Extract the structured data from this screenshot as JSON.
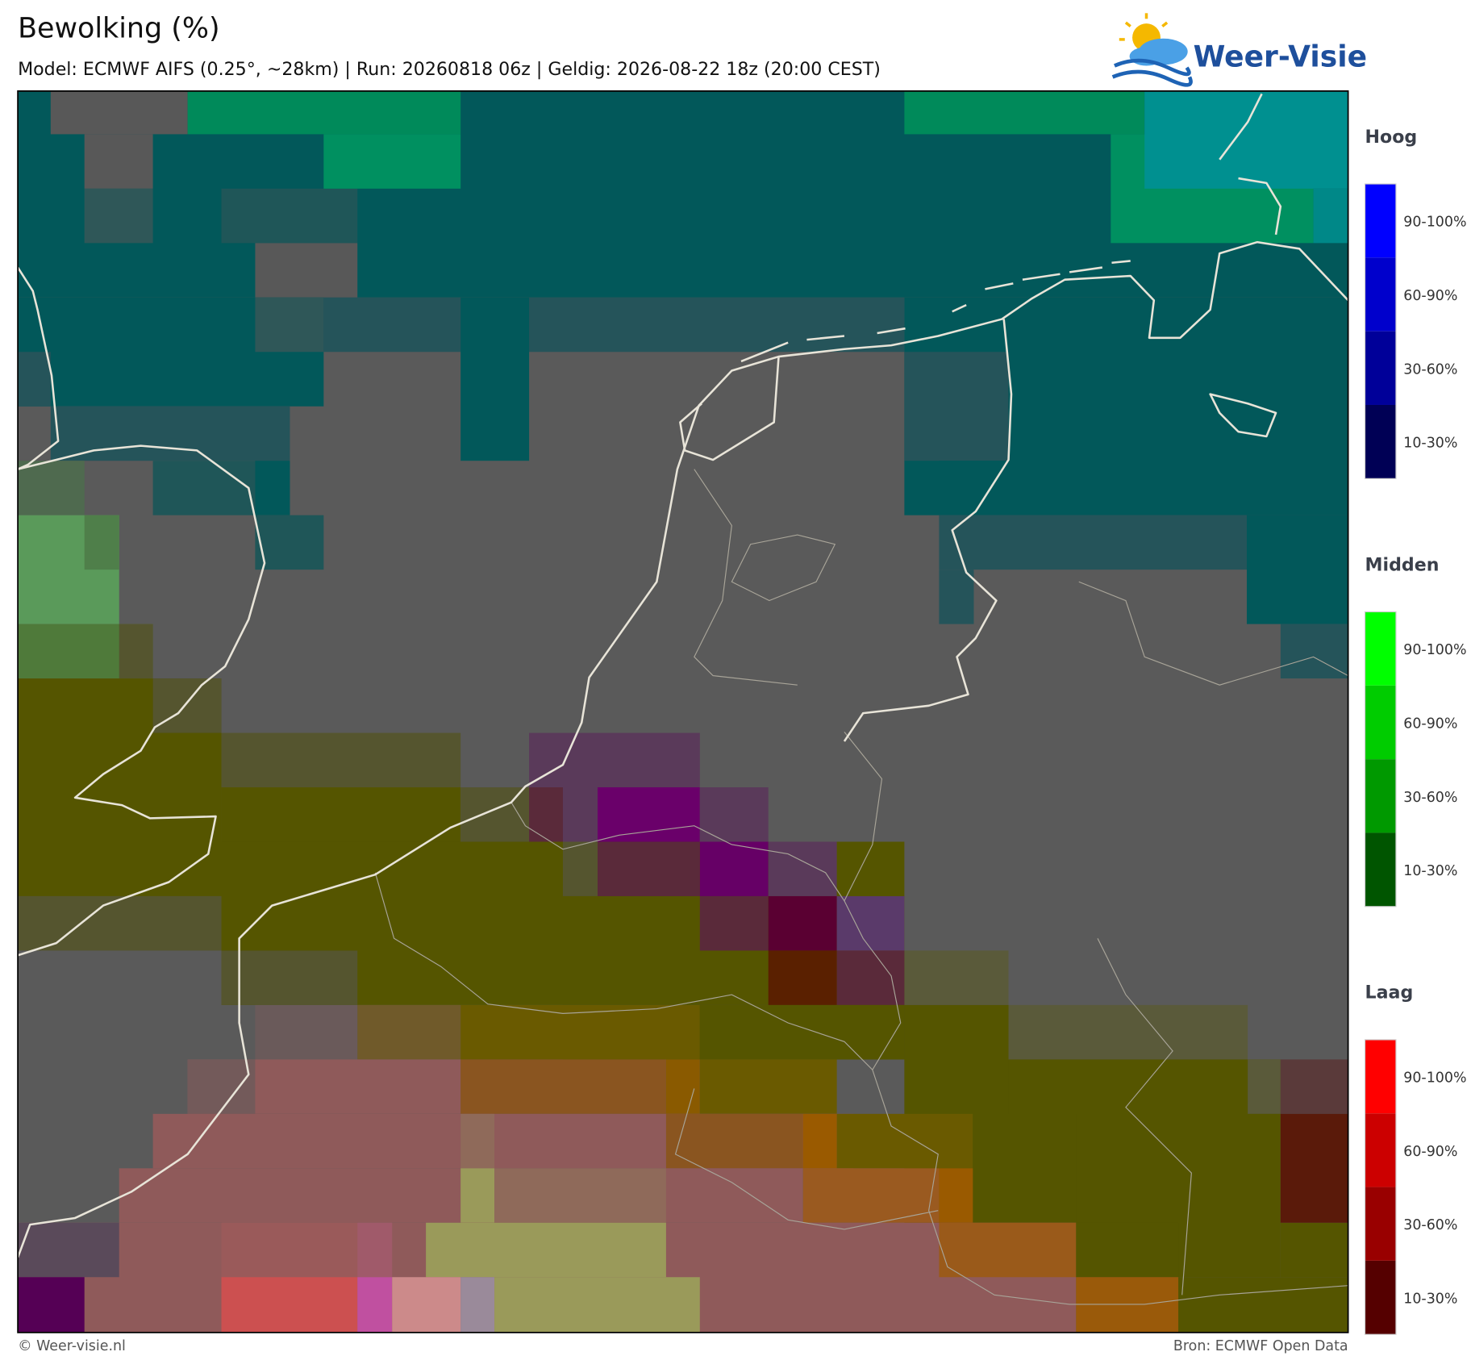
{
  "header": {
    "title": "Bewolking (%)",
    "subtitle": "Model: ECMWF AIFS (0.25°, ~28km)  |  Run: 20260818 06z  |  Geldig: 2026-08-22 18z (20:00 CEST)"
  },
  "logo": {
    "text": "Weer-Visie"
  },
  "legend": [
    {
      "title": "Hoog",
      "labels": [
        "90-100%",
        "60-90%",
        "30-60%",
        "10-30%"
      ],
      "colors": [
        "#0000ff",
        "#0000cc",
        "#000099",
        "#000055"
      ]
    },
    {
      "title": "Midden",
      "labels": [
        "90-100%",
        "60-90%",
        "30-60%",
        "10-30%"
      ],
      "colors": [
        "#00ff00",
        "#00cc00",
        "#009900",
        "#005500"
      ]
    },
    {
      "title": "Laag",
      "labels": [
        "90-100%",
        "60-90%",
        "30-60%",
        "10-30%"
      ],
      "colors": [
        "#ff0000",
        "#cc0000",
        "#990000",
        "#550000"
      ]
    }
  ],
  "footer": {
    "left": "© Weer-visie.nl",
    "right": "Bron: ECMWF Open Data"
  }
}
